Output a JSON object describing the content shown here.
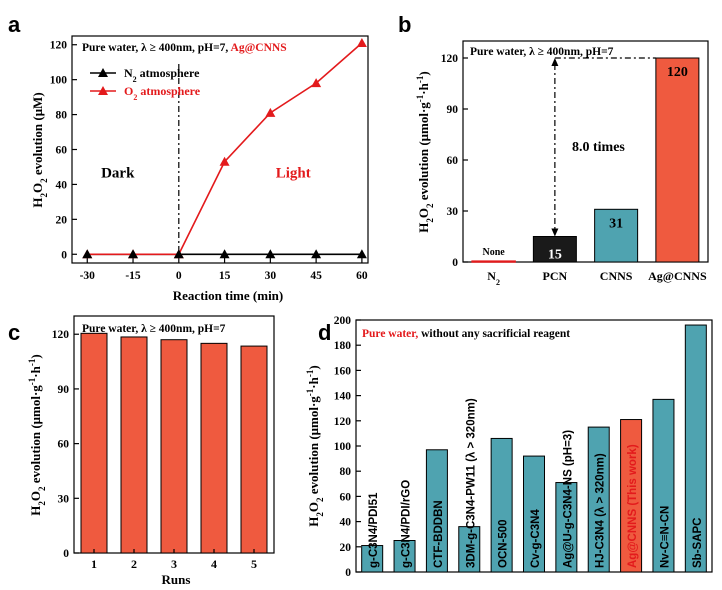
{
  "panels": {
    "a": "a",
    "b": "b",
    "c": "c",
    "d": "d"
  },
  "colors": {
    "red": "#e31a1c",
    "bar_red": "#ef5a3f",
    "bar_teal": "#4fa3b0",
    "bar_black": "#1a1a1a",
    "highlight": "#e31a1c"
  },
  "chart_data": [
    {
      "id": "a",
      "type": "line",
      "title_prefix": "Pure water, λ ≥ 400nm, pH=7, ",
      "title_highlight": "Ag@CNNS",
      "xlabel": "Reaction time (min)",
      "ylabel": "H2O2 evolution (μM)",
      "ylabel_parts": {
        "p1": "H",
        "s1": "2",
        "p2": "O",
        "s2": "2",
        "p3": " evolution (μM)"
      },
      "x": [
        -30,
        -15,
        0,
        15,
        30,
        45,
        60
      ],
      "xlim": [
        -35,
        62
      ],
      "ylim": [
        -5,
        125
      ],
      "xticks": [
        -30,
        -15,
        0,
        15,
        30,
        45,
        60
      ],
      "yticks": [
        0,
        20,
        40,
        60,
        80,
        100,
        120
      ],
      "series": [
        {
          "name": "N2 atmosphere",
          "label_parts": {
            "p1": "N",
            "s1": "2",
            "p2": " atmosphere"
          },
          "color": "#000000",
          "values": [
            0,
            0,
            0,
            0,
            0,
            0,
            0
          ]
        },
        {
          "name": "O2 atmosphere",
          "label_parts": {
            "p1": "O",
            "s1": "2",
            "p2": " atmosphere"
          },
          "color": "#e31a1c",
          "values": [
            0,
            0,
            0,
            53,
            81,
            98,
            121
          ]
        }
      ],
      "annotations": {
        "dark": "Dark",
        "light": "Light",
        "divider_x": 0
      }
    },
    {
      "id": "b",
      "type": "bar",
      "title": "Pure water, λ ≥ 400nm, pH=7",
      "ylabel": "H2O2 evolution (μmol·g-1·h-1)",
      "categories": [
        "N2",
        "PCN",
        "CNNS",
        "Ag@CNNS"
      ],
      "category_parts": [
        {
          "p1": "N",
          "s1": "2"
        },
        {
          "p1": "PCN"
        },
        {
          "p1": "CNNS"
        },
        {
          "p1": "Ag@CNNS"
        }
      ],
      "values": [
        0.5,
        15,
        31,
        120
      ],
      "data_labels": [
        "None",
        "15",
        "31",
        "120"
      ],
      "bar_colors": [
        "#e31a1c",
        "#1a1a1a",
        "#4fa3b0",
        "#ef5a3f"
      ],
      "ylim": [
        0,
        130
      ],
      "yticks": [
        0,
        30,
        60,
        90,
        120
      ],
      "annotation": "8.0 times"
    },
    {
      "id": "c",
      "type": "bar",
      "title": "Pure water, λ ≥ 400nm, pH=7",
      "xlabel": "Runs",
      "ylabel": "H2O2 evolution (μmol·g-1·h-1)",
      "categories": [
        "1",
        "2",
        "3",
        "4",
        "5"
      ],
      "values": [
        120.5,
        118.5,
        117,
        115,
        113.5
      ],
      "ylim": [
        0,
        130
      ],
      "yticks": [
        0,
        30,
        60,
        90,
        120
      ]
    },
    {
      "id": "d",
      "type": "bar",
      "title_highlight": "Pure water,",
      "title_rest": " without any sacrificial reagent",
      "ylabel": "H2O2 evolution (μmol·g-1·h-1)",
      "categories": [
        "g-C3N4/PDI51",
        "g-C3N4/PDI/rGO",
        "CTF-BDDBN",
        "3DM-g-C3N4-PW11 (λ > 320nm)",
        "OCN-500",
        "Cv-g-C3N4",
        "Ag@U-g-C3N4-NS (pH=3)",
        "HJ-C3N4 (λ > 320nm)",
        "Ag@CNNS (This work)",
        "Nv-C≡N-CN",
        "Sb-SAPC"
      ],
      "values": [
        21,
        25,
        97,
        36,
        106,
        92,
        71,
        115,
        121,
        137,
        196
      ],
      "highlight_index": 8,
      "ylim": [
        0,
        200
      ],
      "yticks": [
        0,
        20,
        40,
        60,
        80,
        100,
        120,
        140,
        160,
        180,
        200
      ]
    }
  ]
}
